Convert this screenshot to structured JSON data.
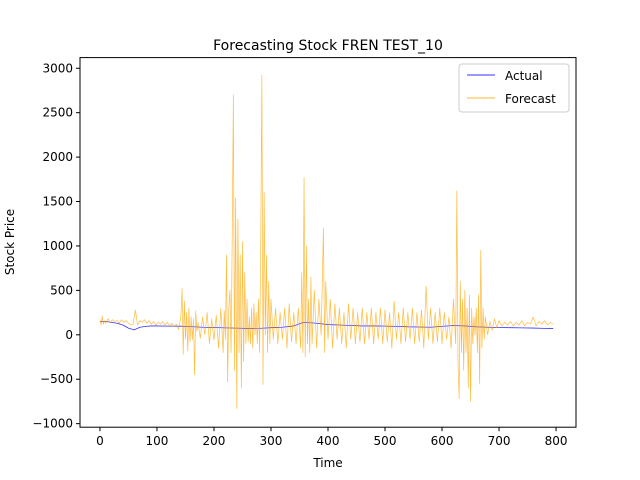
{
  "chart_data": {
    "type": "line",
    "title": "Forecasting Stock FREN TEST_10",
    "xlabel": "Time",
    "ylabel": "Stock Price",
    "xlim": [
      -35,
      835
    ],
    "ylim": [
      -1040,
      3120
    ],
    "xticks": [
      0,
      100,
      200,
      300,
      400,
      500,
      600,
      700,
      800
    ],
    "yticks": [
      -1000,
      -500,
      0,
      500,
      1000,
      1500,
      2000,
      2500,
      3000
    ],
    "grid": false,
    "legend_position": "top-right",
    "series": [
      {
        "name": "Actual",
        "color": "#0000ff",
        "points": [
          [
            0,
            150
          ],
          [
            10,
            150
          ],
          [
            20,
            140
          ],
          [
            30,
            130
          ],
          [
            40,
            110
          ],
          [
            50,
            75
          ],
          [
            60,
            55
          ],
          [
            70,
            85
          ],
          [
            80,
            95
          ],
          [
            90,
            100
          ],
          [
            100,
            100
          ],
          [
            120,
            98
          ],
          [
            140,
            97
          ],
          [
            160,
            92
          ],
          [
            180,
            85
          ],
          [
            200,
            82
          ],
          [
            220,
            78
          ],
          [
            240,
            75
          ],
          [
            260,
            70
          ],
          [
            280,
            72
          ],
          [
            300,
            80
          ],
          [
            320,
            85
          ],
          [
            340,
            100
          ],
          [
            355,
            135
          ],
          [
            360,
            140
          ],
          [
            380,
            130
          ],
          [
            400,
            115
          ],
          [
            420,
            110
          ],
          [
            440,
            105
          ],
          [
            460,
            100
          ],
          [
            480,
            100
          ],
          [
            500,
            98
          ],
          [
            520,
            95
          ],
          [
            540,
            90
          ],
          [
            560,
            88
          ],
          [
            580,
            85
          ],
          [
            600,
            95
          ],
          [
            620,
            105
          ],
          [
            640,
            100
          ],
          [
            660,
            90
          ],
          [
            680,
            85
          ],
          [
            700,
            82
          ],
          [
            720,
            80
          ],
          [
            740,
            78
          ],
          [
            760,
            76
          ],
          [
            780,
            72
          ],
          [
            795,
            70
          ]
        ]
      },
      {
        "name": "Forecast",
        "color": "#ffa500",
        "points": [
          [
            0,
            170
          ],
          [
            2,
            110
          ],
          [
            4,
            210
          ],
          [
            6,
            120
          ],
          [
            8,
            160
          ],
          [
            10,
            130
          ],
          [
            14,
            180
          ],
          [
            18,
            140
          ],
          [
            22,
            170
          ],
          [
            26,
            150
          ],
          [
            30,
            160
          ],
          [
            34,
            130
          ],
          [
            38,
            170
          ],
          [
            42,
            140
          ],
          [
            46,
            160
          ],
          [
            50,
            130
          ],
          [
            54,
            110
          ],
          [
            58,
            120
          ],
          [
            62,
            280
          ],
          [
            66,
            110
          ],
          [
            70,
            160
          ],
          [
            74,
            140
          ],
          [
            78,
            170
          ],
          [
            82,
            130
          ],
          [
            86,
            160
          ],
          [
            90,
            120
          ],
          [
            94,
            150
          ],
          [
            98,
            110
          ],
          [
            102,
            140
          ],
          [
            106,
            120
          ],
          [
            110,
            150
          ],
          [
            114,
            110
          ],
          [
            118,
            140
          ],
          [
            122,
            100
          ],
          [
            126,
            130
          ],
          [
            130,
            90
          ],
          [
            134,
            120
          ],
          [
            138,
            60
          ],
          [
            142,
            210
          ],
          [
            144,
            520
          ],
          [
            146,
            -220
          ],
          [
            148,
            380
          ],
          [
            150,
            -50
          ],
          [
            152,
            250
          ],
          [
            154,
            -180
          ],
          [
            156,
            300
          ],
          [
            158,
            -80
          ],
          [
            160,
            200
          ],
          [
            162,
            -60
          ],
          [
            164,
            180
          ],
          [
            166,
            -450
          ],
          [
            168,
            270
          ],
          [
            170,
            40
          ],
          [
            172,
            140
          ],
          [
            176,
            -40
          ],
          [
            180,
            200
          ],
          [
            184,
            0
          ],
          [
            188,
            250
          ],
          [
            192,
            -100
          ],
          [
            196,
            180
          ],
          [
            200,
            -60
          ],
          [
            204,
            220
          ],
          [
            208,
            -150
          ],
          [
            212,
            300
          ],
          [
            216,
            -200
          ],
          [
            218,
            270
          ],
          [
            220,
            -50
          ],
          [
            222,
            900
          ],
          [
            224,
            -530
          ],
          [
            226,
            300
          ],
          [
            228,
            500
          ],
          [
            230,
            -200
          ],
          [
            232,
            1100
          ],
          [
            234,
            2700
          ],
          [
            236,
            -400
          ],
          [
            238,
            1540
          ],
          [
            240,
            -830
          ],
          [
            242,
            1300
          ],
          [
            244,
            -200
          ],
          [
            246,
            900
          ],
          [
            248,
            -600
          ],
          [
            250,
            1050
          ],
          [
            252,
            -300
          ],
          [
            254,
            700
          ],
          [
            256,
            -100
          ],
          [
            258,
            400
          ],
          [
            260,
            -80
          ],
          [
            262,
            200
          ],
          [
            264,
            -100
          ],
          [
            266,
            300
          ],
          [
            268,
            -150
          ],
          [
            270,
            350
          ],
          [
            272,
            0
          ],
          [
            274,
            250
          ],
          [
            276,
            -100
          ],
          [
            278,
            400
          ],
          [
            280,
            -200
          ],
          [
            282,
            1000
          ],
          [
            284,
            2920
          ],
          [
            286,
            -560
          ],
          [
            288,
            1600
          ],
          [
            290,
            0
          ],
          [
            292,
            900
          ],
          [
            294,
            -200
          ],
          [
            296,
            600
          ],
          [
            298,
            -100
          ],
          [
            300,
            400
          ],
          [
            304,
            -50
          ],
          [
            308,
            300
          ],
          [
            312,
            -100
          ],
          [
            316,
            250
          ],
          [
            320,
            -50
          ],
          [
            324,
            300
          ],
          [
            328,
            -150
          ],
          [
            332,
            350
          ],
          [
            336,
            -80
          ],
          [
            340,
            250
          ],
          [
            344,
            -100
          ],
          [
            348,
            300
          ],
          [
            352,
            -150
          ],
          [
            354,
            700
          ],
          [
            356,
            -200
          ],
          [
            358,
            1770
          ],
          [
            360,
            -250
          ],
          [
            362,
            1000
          ],
          [
            364,
            -100
          ],
          [
            366,
            400
          ],
          [
            368,
            -200
          ],
          [
            370,
            650
          ],
          [
            372,
            -100
          ],
          [
            376,
            500
          ],
          [
            380,
            -150
          ],
          [
            384,
            400
          ],
          [
            388,
            0
          ],
          [
            392,
            1200
          ],
          [
            394,
            -200
          ],
          [
            396,
            600
          ],
          [
            400,
            -50
          ],
          [
            404,
            400
          ],
          [
            408,
            -150
          ],
          [
            412,
            350
          ],
          [
            416,
            -50
          ],
          [
            420,
            300
          ],
          [
            424,
            -100
          ],
          [
            428,
            250
          ],
          [
            432,
            -150
          ],
          [
            436,
            350
          ],
          [
            440,
            -50
          ],
          [
            444,
            300
          ],
          [
            448,
            -100
          ],
          [
            452,
            250
          ],
          [
            456,
            -80
          ],
          [
            460,
            300
          ],
          [
            464,
            -100
          ],
          [
            468,
            250
          ],
          [
            472,
            -50
          ],
          [
            476,
            300
          ],
          [
            480,
            -100
          ],
          [
            484,
            250
          ],
          [
            488,
            -50
          ],
          [
            492,
            300
          ],
          [
            496,
            -100
          ],
          [
            500,
            280
          ],
          [
            504,
            -80
          ],
          [
            508,
            250
          ],
          [
            512,
            -150
          ],
          [
            516,
            380
          ],
          [
            520,
            -50
          ],
          [
            524,
            250
          ],
          [
            528,
            -100
          ],
          [
            532,
            300
          ],
          [
            536,
            -80
          ],
          [
            540,
            250
          ],
          [
            544,
            -50
          ],
          [
            548,
            300
          ],
          [
            552,
            -100
          ],
          [
            556,
            250
          ],
          [
            560,
            -80
          ],
          [
            564,
            280
          ],
          [
            568,
            -150
          ],
          [
            572,
            550
          ],
          [
            576,
            -50
          ],
          [
            580,
            300
          ],
          [
            584,
            -100
          ],
          [
            588,
            250
          ],
          [
            592,
            -80
          ],
          [
            596,
            300
          ],
          [
            600,
            -100
          ],
          [
            604,
            250
          ],
          [
            608,
            -50
          ],
          [
            612,
            200
          ],
          [
            616,
            -150
          ],
          [
            620,
            400
          ],
          [
            624,
            -100
          ],
          [
            626,
            1620
          ],
          [
            628,
            -300
          ],
          [
            630,
            -720
          ],
          [
            632,
            600
          ],
          [
            634,
            -200
          ],
          [
            636,
            400
          ],
          [
            638,
            -400
          ],
          [
            640,
            500
          ],
          [
            642,
            -200
          ],
          [
            644,
            300
          ],
          [
            646,
            -600
          ],
          [
            648,
            450
          ],
          [
            650,
            -750
          ],
          [
            652,
            300
          ],
          [
            654,
            -100
          ],
          [
            656,
            200
          ],
          [
            658,
            0
          ],
          [
            660,
            300
          ],
          [
            662,
            -200
          ],
          [
            664,
            450
          ],
          [
            666,
            -550
          ],
          [
            668,
            950
          ],
          [
            670,
            -150
          ],
          [
            672,
            300
          ],
          [
            674,
            -50
          ],
          [
            676,
            200
          ],
          [
            680,
            0
          ],
          [
            684,
            150
          ],
          [
            688,
            50
          ],
          [
            692,
            180
          ],
          [
            696,
            80
          ],
          [
            700,
            160
          ],
          [
            705,
            100
          ],
          [
            710,
            140
          ],
          [
            715,
            110
          ],
          [
            720,
            150
          ],
          [
            725,
            100
          ],
          [
            730,
            140
          ],
          [
            735,
            110
          ],
          [
            740,
            160
          ],
          [
            745,
            100
          ],
          [
            750,
            140
          ],
          [
            755,
            120
          ],
          [
            760,
            200
          ],
          [
            765,
            100
          ],
          [
            770,
            150
          ],
          [
            775,
            120
          ],
          [
            780,
            160
          ],
          [
            785,
            110
          ],
          [
            790,
            140
          ],
          [
            795,
            120
          ]
        ]
      }
    ]
  }
}
